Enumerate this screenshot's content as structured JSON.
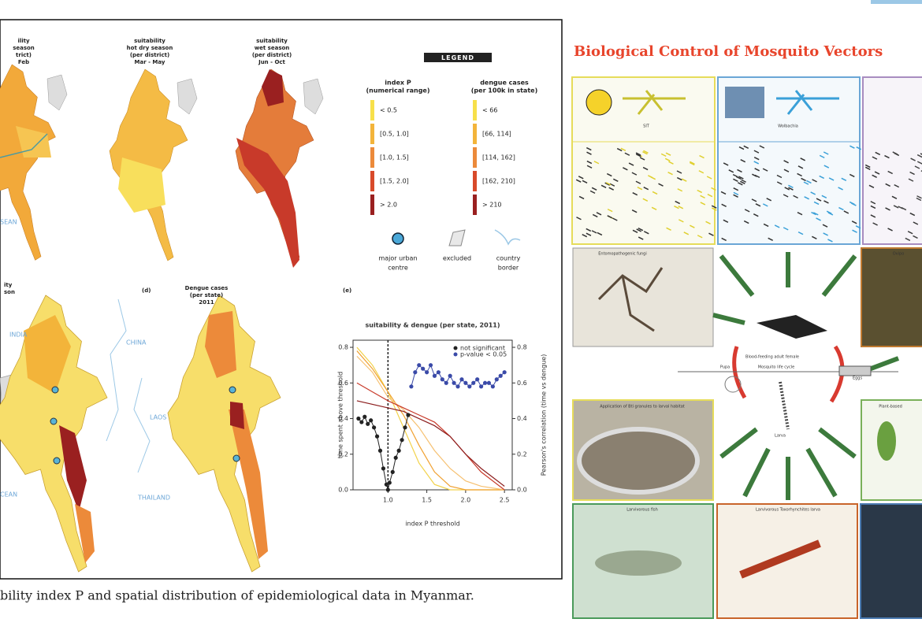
{
  "figure": {
    "maps_top": [
      {
        "lines": [
          "ility",
          "season",
          "trict)",
          "Feb"
        ]
      },
      {
        "lines": [
          "suitability",
          "hot dry season",
          "(per district)",
          "Mar - May"
        ]
      },
      {
        "lines": [
          "suitability",
          "wet season",
          "(per district)",
          "Jun - Oct"
        ]
      }
    ],
    "maps_bottom": [
      {
        "lines": [
          "ity",
          "son"
        ]
      },
      {
        "label": "(d)",
        "lines": [
          "Dengue cases",
          "(per state)",
          "2011"
        ]
      }
    ],
    "chart_label": "(e)",
    "geo_labels": [
      "INDIA",
      "CHINA",
      "LAOS",
      "THAILAND",
      "SEAN",
      "CEAN"
    ],
    "legend": {
      "title": "LEGEND",
      "index_p": {
        "lines": [
          "index P",
          "(numerical range)"
        ],
        "items": [
          "< 0.5",
          "[0.5, 1.0]",
          "[1.0, 1.5]",
          "[1.5, 2.0]",
          "> 2.0"
        ]
      },
      "dengue": {
        "lines": [
          "dengue cases",
          "(per 100k in state)"
        ],
        "items": [
          "< 66",
          "[66, 114]",
          "[114, 162]",
          "[162, 210]",
          "> 210"
        ]
      },
      "colors": [
        "#f7e04a",
        "#f3b43a",
        "#ec8a3a",
        "#d84a2a",
        "#9a2020"
      ],
      "symbols": [
        {
          "lines": [
            "major urban",
            "centre"
          ]
        },
        {
          "lines": [
            "excluded"
          ]
        },
        {
          "lines": [
            "country",
            "border"
          ]
        }
      ]
    },
    "chart": {
      "type": "line",
      "title": "suitability & dengue (per state, 2011)",
      "xlabel": "index P threshold",
      "ylabel": "time spent above threshold",
      "y2label": "Pearson's correlation (time vs dengue)",
      "xlim": [
        0.55,
        2.6
      ],
      "xticks": [
        {
          "value": 1,
          "label": "1.0"
        },
        1.5,
        {
          "value": 2,
          "label": "2.0"
        },
        2.5
      ],
      "ylim": [
        0,
        0.84
      ],
      "yticks": [
        {
          "value": 0,
          "label": "0.0"
        },
        0.2,
        0.4,
        0.6,
        0.8
      ],
      "y2lim": [
        0,
        0.84
      ],
      "y2ticks": [
        {
          "value": 0,
          "label": "0.0"
        },
        0.2,
        0.4,
        0.6,
        0.8
      ],
      "lines": [
        {
          "color": "#f2d24a",
          "x": [
            0.6,
            0.8,
            1.0,
            1.2,
            1.4,
            1.6,
            1.8,
            2.0,
            2.2,
            2.5
          ],
          "values": [
            0.8,
            0.7,
            0.55,
            0.35,
            0.15,
            0.03,
            0,
            0,
            0,
            0
          ]
        },
        {
          "color": "#f0a030",
          "x": [
            0.6,
            0.8,
            1.0,
            1.2,
            1.4,
            1.6,
            1.8,
            2.0,
            2.2,
            2.5
          ],
          "values": [
            0.78,
            0.68,
            0.55,
            0.42,
            0.25,
            0.1,
            0.02,
            0,
            0,
            0
          ]
        },
        {
          "color": "#f6c070",
          "x": [
            0.6,
            0.8,
            1.0,
            1.2,
            1.4,
            1.6,
            1.8,
            2.0,
            2.2,
            2.5
          ],
          "values": [
            0.75,
            0.66,
            0.52,
            0.45,
            0.35,
            0.22,
            0.12,
            0.05,
            0.02,
            0
          ]
        },
        {
          "color": "#c83a2a",
          "x": [
            0.6,
            0.8,
            1.0,
            1.2,
            1.4,
            1.6,
            1.8,
            2.0,
            2.2,
            2.5
          ],
          "values": [
            0.6,
            0.55,
            0.5,
            0.46,
            0.42,
            0.38,
            0.3,
            0.2,
            0.1,
            0
          ]
        },
        {
          "color": "#8b1c1c",
          "x": [
            0.6,
            0.8,
            1.0,
            1.2,
            1.4,
            1.6,
            1.8,
            2.0,
            2.2,
            2.5
          ],
          "values": [
            0.5,
            0.48,
            0.46,
            0.44,
            0.4,
            0.36,
            0.3,
            0.2,
            0.12,
            0.02
          ]
        }
      ],
      "series": [
        {
          "name": "not significant",
          "color": "#222222",
          "axis": "y2",
          "x": [
            0.62,
            0.66,
            0.7,
            0.74,
            0.78,
            0.82,
            0.86,
            0.9,
            0.94,
            0.98,
            1.0,
            1.02,
            1.06,
            1.1,
            1.14,
            1.18,
            1.22,
            1.26
          ],
          "values": [
            0.4,
            0.38,
            0.41,
            0.37,
            0.39,
            0.35,
            0.3,
            0.22,
            0.12,
            0.03,
            0,
            0.04,
            0.1,
            0.18,
            0.22,
            0.28,
            0.35,
            0.42
          ]
        },
        {
          "name": "p-value < 0.05",
          "color": "#3a4aa8",
          "axis": "y2",
          "x": [
            1.3,
            1.35,
            1.4,
            1.45,
            1.5,
            1.55,
            1.6,
            1.65,
            1.7,
            1.75,
            1.8,
            1.85,
            1.9,
            1.95,
            2.0,
            2.05,
            2.1,
            2.15,
            2.2,
            2.25,
            2.3,
            2.35,
            2.4,
            2.45,
            2.5
          ],
          "values": [
            0.58,
            0.66,
            0.7,
            0.68,
            0.66,
            0.7,
            0.64,
            0.66,
            0.62,
            0.6,
            0.64,
            0.6,
            0.58,
            0.62,
            0.6,
            0.58,
            0.6,
            0.62,
            0.58,
            0.6,
            0.6,
            0.58,
            0.62,
            0.64,
            0.66
          ]
        }
      ]
    }
  },
  "caption": "bility index P and spatial distribution of epidemiological data in Myanmar.",
  "infographic": {
    "title": "Biological Control of Mosquito Vectors",
    "labels": [
      "SIT",
      "Wolbachia",
      "Entomopathogenic fungi",
      "Blood-feeding adult female",
      "Mosquito life cycle",
      "Pupa",
      "Eggs",
      "Larva",
      "Application of Bti granules to larval habitat",
      "Larvivorous fish",
      "Larvivorous Toxorhynchites larva",
      "Plant-based",
      "Ovipo"
    ]
  }
}
